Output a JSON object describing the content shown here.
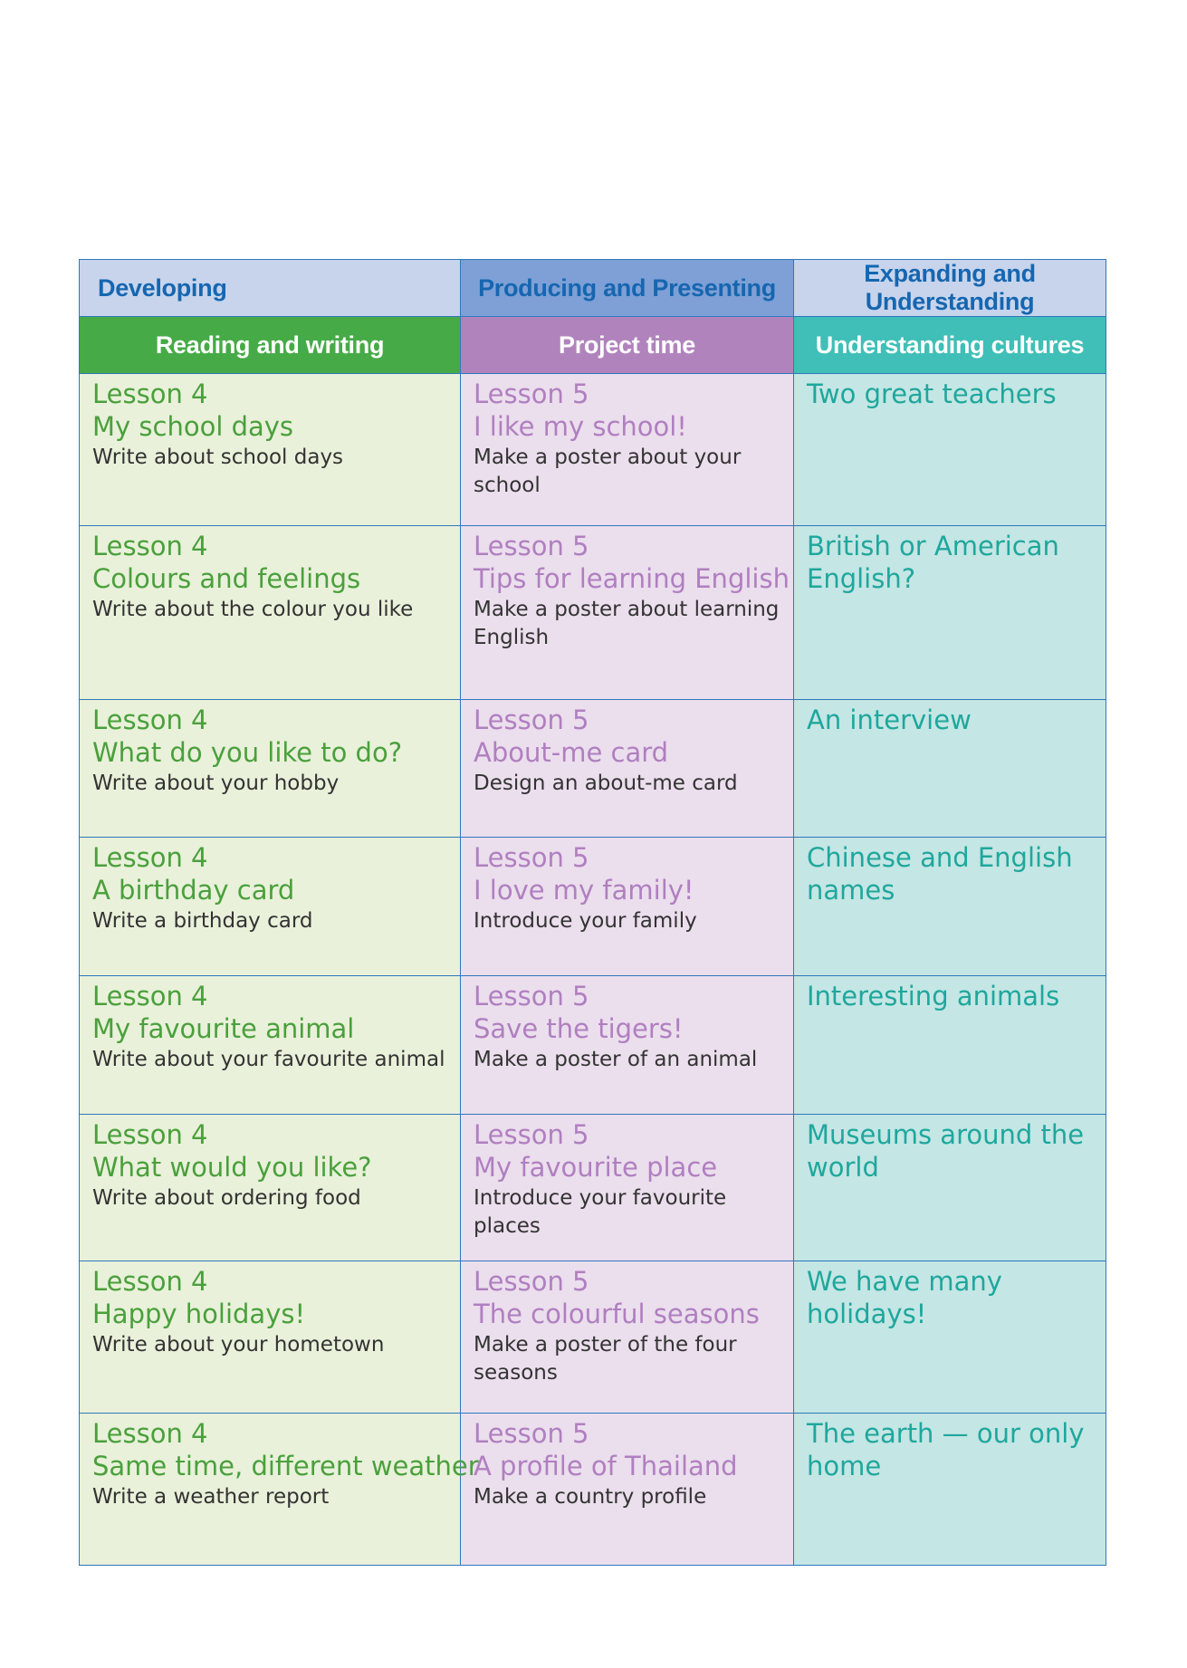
{
  "header": {
    "categories": [
      "Developing",
      "Producing and Presenting",
      "Expanding and Understanding"
    ],
    "sections": [
      "Reading and writing",
      "Project time",
      "Understanding cultures"
    ]
  },
  "rows": [
    {
      "rw": {
        "lesson": "Lesson 4",
        "title": "My school days",
        "task": "Write about school days"
      },
      "pt": {
        "lesson": "Lesson 5",
        "title": "I like my school!",
        "task": "Make a poster about your school"
      },
      "uc": "Two great teachers"
    },
    {
      "rw": {
        "lesson": "Lesson 4",
        "title": "Colours and feelings",
        "task": "Write about the colour you like"
      },
      "pt": {
        "lesson": "Lesson 5",
        "title": "Tips for learning English",
        "task": "Make a poster about learning English"
      },
      "uc": "British or American English?"
    },
    {
      "rw": {
        "lesson": "Lesson 4",
        "title": "What do you like to do?",
        "task": "Write about your hobby"
      },
      "pt": {
        "lesson": "Lesson 5",
        "title": "About-me card",
        "task": "Design an about-me card"
      },
      "uc": "An interview"
    },
    {
      "rw": {
        "lesson": "Lesson 4",
        "title": "A birthday card",
        "task": "Write a birthday card"
      },
      "pt": {
        "lesson": "Lesson 5",
        "title": "I love my family!",
        "task": "Introduce your family"
      },
      "uc": "Chinese and English names"
    },
    {
      "rw": {
        "lesson": "Lesson 4",
        "title": "My favourite animal",
        "task": "Write about your favourite animal"
      },
      "pt": {
        "lesson": "Lesson 5",
        "title": "Save the tigers!",
        "task": "Make a poster of an animal"
      },
      "uc": "Interesting animals"
    },
    {
      "rw": {
        "lesson": "Lesson 4",
        "title": "What would you like?",
        "task": "Write about ordering food"
      },
      "pt": {
        "lesson": "Lesson 5",
        "title": "My favourite place",
        "task": "Introduce your favourite places"
      },
      "uc": "Museums around the world"
    },
    {
      "rw": {
        "lesson": "Lesson 4",
        "title": "Happy holidays!",
        "task": "Write about your hometown"
      },
      "pt": {
        "lesson": "Lesson 5",
        "title": "The colourful seasons",
        "task": "Make a poster of the four seasons"
      },
      "uc": "We have many holidays!"
    },
    {
      "rw": {
        "lesson": "Lesson 4",
        "title": "Same time, different weather",
        "task": "Write a weather report"
      },
      "pt": {
        "lesson": "Lesson 5",
        "title": "A profile of Thailand",
        "task": "Make a country profile"
      },
      "uc": "The earth — our only home"
    }
  ]
}
